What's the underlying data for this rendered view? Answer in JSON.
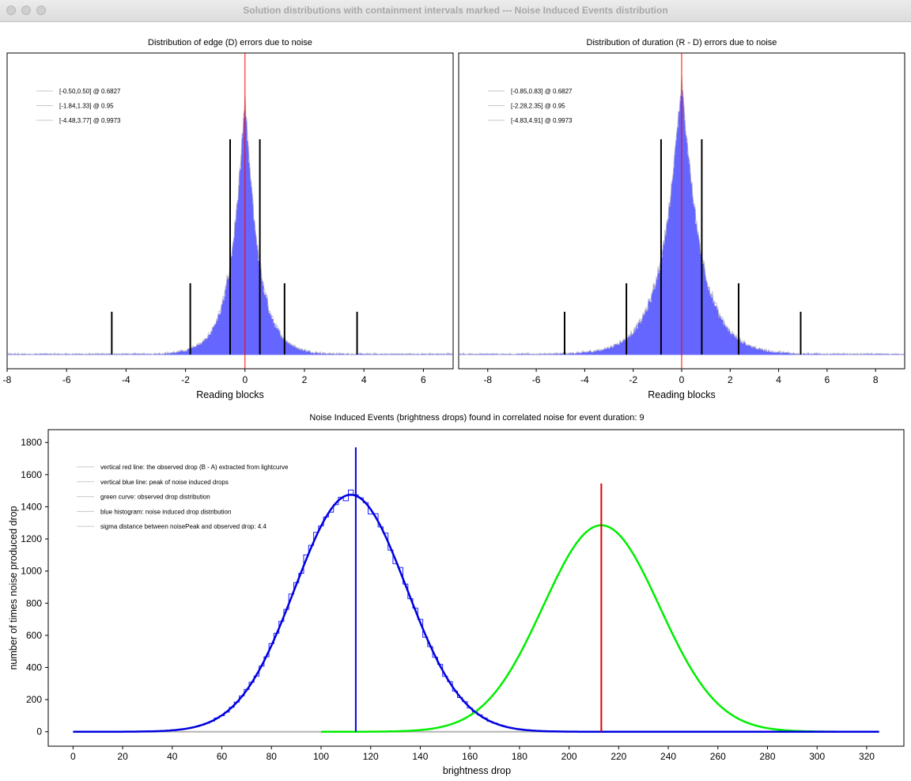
{
  "window": {
    "title": "Solution distributions with containment intervals marked --- Noise Induced Events distribution"
  },
  "colors": {
    "histogram_fill": "#6565ff",
    "histogram_edge": "#b0b0b0",
    "center_line": "#ff0000",
    "interval_line": "#000000",
    "blue_curve": "#0000e0",
    "green_curve": "#00ee00",
    "observed_line": "#e00000"
  },
  "chart_data": [
    {
      "type": "bar",
      "title": "Distribution of edge (D) errors due to noise",
      "xlabel": "Reading blocks",
      "ylabel": "",
      "xlim": [
        -8,
        7
      ],
      "xticks": [
        -8,
        -6,
        -4,
        -2,
        0,
        2,
        4,
        6
      ],
      "distribution": {
        "center": 0.0,
        "scale_left": 0.5,
        "scale_right": 0.5
      },
      "center_line": 0,
      "intervals": [
        {
          "label": "[-0.50,0.50] @ 0.6827",
          "low": -0.5,
          "high": 0.5,
          "level": 0.6827
        },
        {
          "label": "[-1.84,1.33] @ 0.95",
          "low": -1.84,
          "high": 1.33,
          "level": 0.95
        },
        {
          "label": "[-4.48,3.77] @ 0.9973",
          "low": -4.48,
          "high": 3.77,
          "level": 0.9973
        }
      ],
      "grid": false,
      "legend_position": "top-left"
    },
    {
      "type": "bar",
      "title": "Distribution of duration (R - D) errors due to noise",
      "xlabel": "Reading blocks",
      "ylabel": "",
      "xlim": [
        -9.2,
        9.2
      ],
      "xticks": [
        -8,
        -6,
        -4,
        -2,
        0,
        2,
        4,
        6,
        8
      ],
      "distribution": {
        "center": 0.0,
        "scale_left": 0.85,
        "scale_right": 0.85
      },
      "center_line": 0,
      "intervals": [
        {
          "label": "[-0.85,0.83] @ 0.6827",
          "low": -0.85,
          "high": 0.83,
          "level": 0.6827
        },
        {
          "label": "[-2.28,2.35] @ 0.95",
          "low": -2.28,
          "high": 2.35,
          "level": 0.95
        },
        {
          "label": "[-4.83,4.91] @ 0.9973",
          "low": -4.83,
          "high": 4.91,
          "level": 0.9973
        }
      ],
      "grid": false,
      "legend_position": "top-left"
    },
    {
      "type": "line",
      "title": "Noise Induced Events (brightness drops) found in correlated noise for event duration: 9",
      "xlabel": "brightness drop",
      "ylabel": "number of times noise produced drop",
      "xlim": [
        -10,
        335
      ],
      "ylim": [
        -90,
        1880
      ],
      "xticks": [
        0,
        20,
        40,
        60,
        80,
        100,
        120,
        140,
        160,
        180,
        200,
        220,
        240,
        260,
        280,
        300,
        320
      ],
      "yticks": [
        0,
        200,
        400,
        600,
        800,
        1000,
        1200,
        1400,
        1600,
        1800
      ],
      "series": [
        {
          "kind": "histogram",
          "mean": 112,
          "sd": 22.5,
          "peak": 1475,
          "x_range": [
            35,
            225
          ]
        },
        {
          "kind": "blue-curve",
          "mean": 112,
          "sd": 22.5,
          "peak": 1475,
          "x_range": [
            0,
            325
          ]
        },
        {
          "kind": "green-curve",
          "mean": 213,
          "sd": 23.5,
          "peak": 1285,
          "x_range": [
            100,
            325
          ]
        }
      ],
      "vertical_lines": [
        {
          "name": "noise-peak",
          "x": 114,
          "y_top": 1770
        },
        {
          "name": "observed-drop",
          "x": 213,
          "y_top": 1545
        }
      ],
      "legend": [
        "vertical red line: the observed drop (B - A) extracted from lightcurve",
        "vertical blue line: peak of noise induced drops",
        "green curve: observed drop distribution",
        "blue histogram: noise induced drop distribution",
        "sigma distance between noisePeak and observed drop: 4.4"
      ],
      "grid": false,
      "legend_position": "top-left"
    }
  ]
}
